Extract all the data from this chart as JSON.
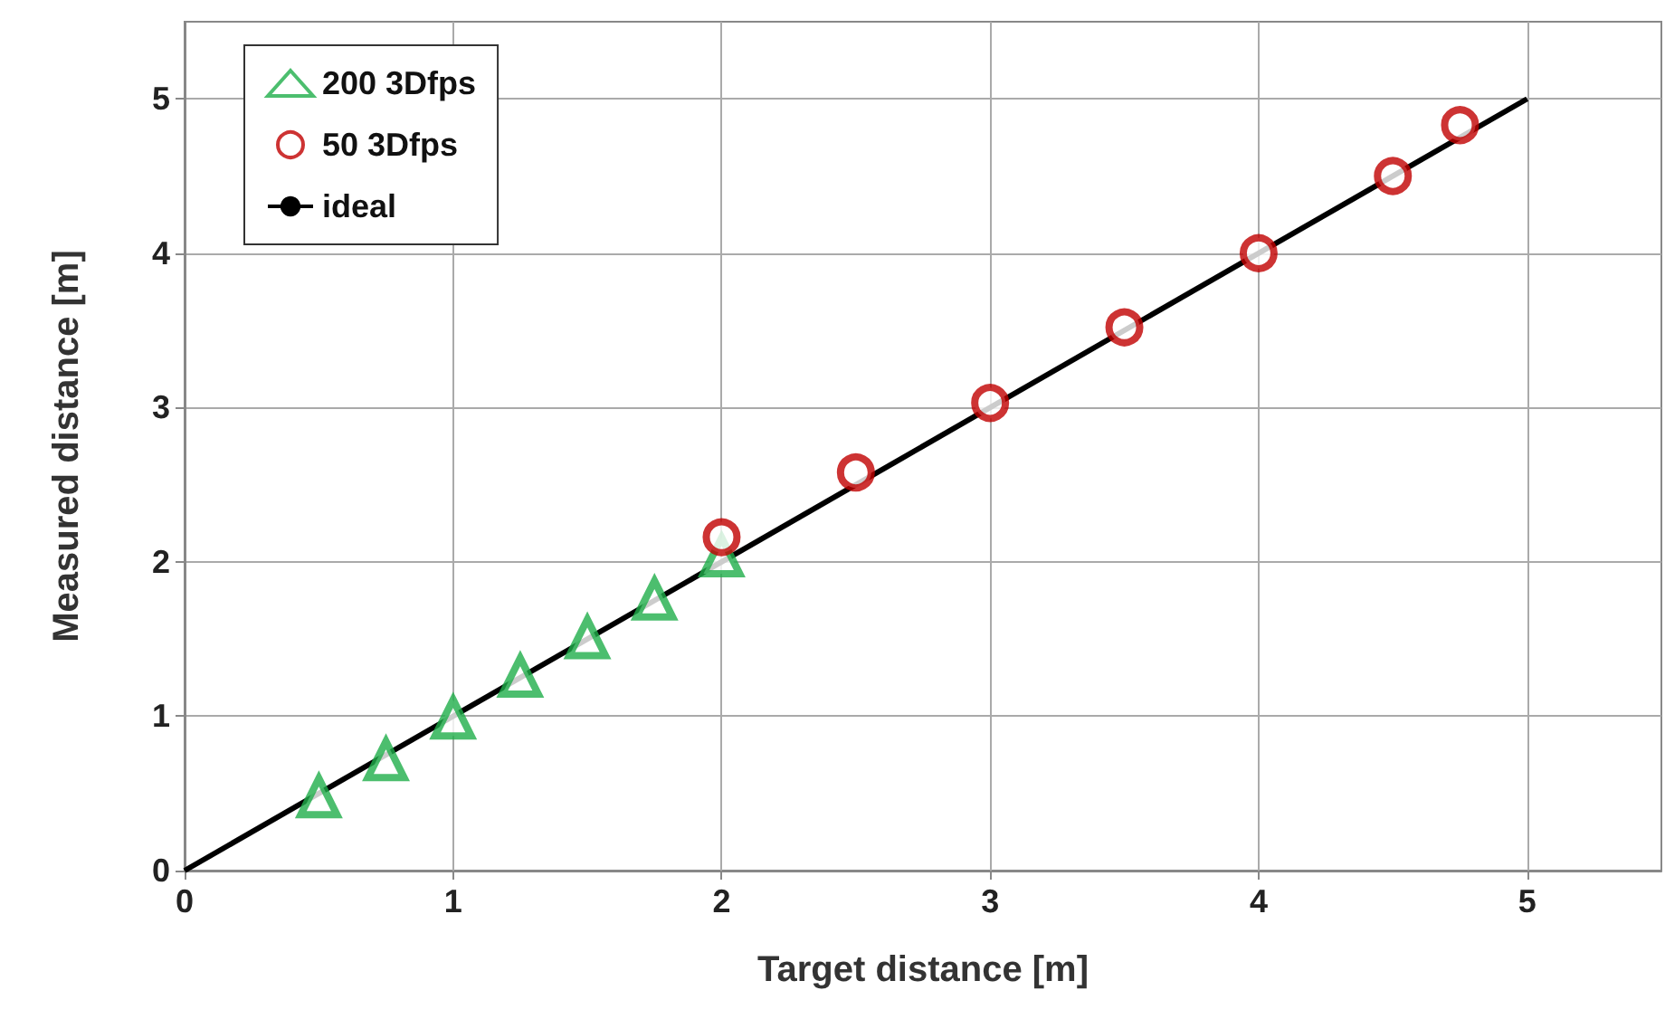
{
  "chart_data": {
    "type": "scatter",
    "xlabel": "Target distance [m]",
    "ylabel": "Measured distance [m]",
    "xlim": [
      0,
      5.5
    ],
    "xticks": [
      0,
      1,
      2,
      3,
      4,
      5
    ],
    "ylim": [
      0,
      5.5
    ],
    "yticks": [
      0,
      1,
      2,
      3,
      4,
      5
    ],
    "grid": true,
    "legend": "top left",
    "series": [
      {
        "name": "200 3Dfps",
        "color": "#1fae4a",
        "marker": "triangle",
        "x": [
          0.5,
          0.75,
          1,
          1.25,
          1.5,
          1.75,
          2
        ],
        "values": [
          0.48,
          0.72,
          0.99,
          1.26,
          1.51,
          1.76,
          2.04
        ]
      },
      {
        "name": "50 3Dfps",
        "color": "#c00000",
        "marker": "circle",
        "x": [
          2,
          2.5,
          3,
          3.5,
          4,
          4.5,
          4.75
        ],
        "values": [
          2.16,
          2.58,
          3.03,
          3.52,
          4.0,
          4.5,
          4.83
        ]
      },
      {
        "name": "ideal",
        "type": "line",
        "color": "#000000",
        "marker": "none",
        "line_style": "solid",
        "x": [
          0,
          5
        ],
        "values": [
          0,
          5
        ]
      }
    ]
  }
}
